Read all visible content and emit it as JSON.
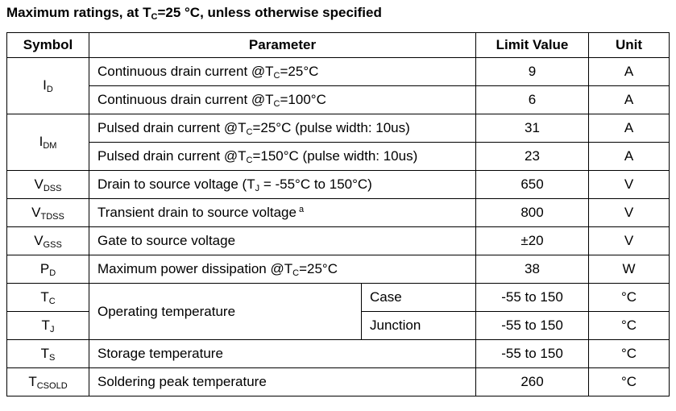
{
  "title": {
    "main": "Maximum ratings, at T",
    "sub": "C",
    "rest": "=25 °C, unless otherwise specified"
  },
  "headers": {
    "symbol": "Symbol",
    "parameter": "Parameter",
    "limit": "Limit Value",
    "unit": "Unit"
  },
  "rows": [
    {
      "sym_main": "I",
      "sym_sub": "D",
      "p1": "Continuous drain current @T",
      "p_sub": "C",
      "p2": "=25°C",
      "value": "9",
      "unit": "A"
    },
    {
      "p1": "Continuous drain current @T",
      "p_sub": "C",
      "p2": "=100°C",
      "value": "6",
      "unit": "A"
    },
    {
      "sym_main": "I",
      "sym_sub": "DM",
      "p1": "Pulsed drain current @T",
      "p_sub": "C",
      "p2": "=25°C (pulse width: 10us)",
      "value": "31",
      "unit": "A"
    },
    {
      "p1": "Pulsed drain current @T",
      "p_sub": "C",
      "p2": "=150°C (pulse width: 10us)",
      "value": "23",
      "unit": "A"
    },
    {
      "sym_main": "V",
      "sym_sub": "DSS",
      "p1": "Drain to source voltage (T",
      "p_sub": "J",
      "p2": " = -55°C to 150°C)",
      "value": "650",
      "unit": "V"
    },
    {
      "sym_main": "V",
      "sym_sub": "TDSS",
      "p1": "Transient drain to source voltage",
      "p_sup": "a",
      "value": "800",
      "unit": "V"
    },
    {
      "sym_main": "V",
      "sym_sub": "GSS",
      "p1": "Gate to source voltage",
      "value": "±20",
      "unit": "V"
    },
    {
      "sym_main": "P",
      "sym_sub": "D",
      "p1": "Maximum power dissipation @T",
      "p_sub": "C",
      "p2": "=25°C",
      "value": "38",
      "unit": "W"
    },
    {
      "sym_main": "T",
      "sym_sub": "C",
      "p1": "Operating temperature",
      "cond": "Case",
      "value": "-55 to 150",
      "unit": "°C"
    },
    {
      "sym_main": "T",
      "sym_sub": "J",
      "cond": "Junction",
      "value": "-55 to 150",
      "unit": "°C"
    },
    {
      "sym_main": "T",
      "sym_sub": "S",
      "p1": "Storage temperature",
      "value": "-55 to 150",
      "unit": "°C"
    },
    {
      "sym_main": "T",
      "sym_sub": "CSOLD",
      "p1": "Soldering peak temperature",
      "value": "260",
      "unit": "°C"
    }
  ]
}
